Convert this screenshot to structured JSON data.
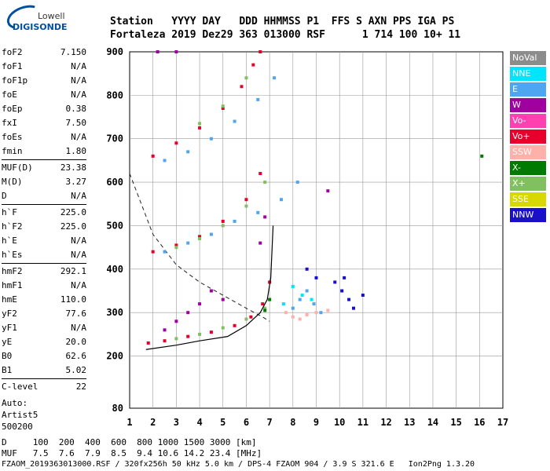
{
  "logo": {
    "line1": "Lowell",
    "line2": "DIGISONDE"
  },
  "header": {
    "row1": "Station   YYYY DAY   DDD HHMMSS P1  FFS S AXN PPS IGA PS",
    "row2": "Fortaleza 2019 Dez29 363 013000 RSF      1 714 100 10+ 11"
  },
  "params": [
    {
      "k": "foF2",
      "v": "7.150"
    },
    {
      "k": "foF1",
      "v": "N/A"
    },
    {
      "k": "foF1p",
      "v": "N/A"
    },
    {
      "k": "foE",
      "v": "N/A"
    },
    {
      "k": "foEp",
      "v": "0.38"
    },
    {
      "k": "fxI",
      "v": "7.50"
    },
    {
      "k": "foEs",
      "v": "N/A"
    },
    {
      "k": "fmin",
      "v": "1.80"
    },
    {
      "k": "MUF(D)",
      "v": "23.38"
    },
    {
      "k": "M(D)",
      "v": "3.27"
    },
    {
      "k": "D",
      "v": "N/A"
    },
    {
      "k": "h`F",
      "v": "225.0"
    },
    {
      "k": "h`F2",
      "v": "225.0"
    },
    {
      "k": "h`E",
      "v": "N/A"
    },
    {
      "k": "h`Es",
      "v": "N/A"
    },
    {
      "k": "hmF2",
      "v": "292.1"
    },
    {
      "k": "hmF1",
      "v": "N/A"
    },
    {
      "k": "hmE",
      "v": "110.0"
    },
    {
      "k": "yF2",
      "v": "77.6"
    },
    {
      "k": "yF1",
      "v": "N/A"
    },
    {
      "k": "yE",
      "v": "20.0"
    },
    {
      "k": "B0",
      "v": "62.6"
    },
    {
      "k": "B1",
      "v": "5.02"
    },
    {
      "k": "C-level",
      "v": "22"
    }
  ],
  "auto": {
    "l1": "Auto:",
    "l2": "Artist5",
    "l3": "500200"
  },
  "legend": [
    {
      "label": "NoVal",
      "color": "#8c8c8c"
    },
    {
      "label": "NNE",
      "color": "#00e5ff"
    },
    {
      "label": "E",
      "color": "#4fa6f0"
    },
    {
      "label": "W",
      "color": "#a000a0"
    },
    {
      "label": "Vo-",
      "color": "#ff40b0"
    },
    {
      "label": "Vo+",
      "color": "#e8002a"
    },
    {
      "label": "SSW",
      "color": "#ffb0a8"
    },
    {
      "label": "X-",
      "color": "#007a00"
    },
    {
      "label": "X+",
      "color": "#80c060"
    },
    {
      "label": "SSE",
      "color": "#d8d800"
    },
    {
      "label": "NNW",
      "color": "#1a10c8"
    }
  ],
  "footer": {
    "d_row": "D     100  200  400  600  800 1000 1500 3000 [km]",
    "muf_row": "MUF   7.5  7.6  7.9  8.5  9.4 10.6 14.2 23.4 [MHz]",
    "file_row": "FZAOM_2019363013000.RSF / 320fx256h 50 kHz 5.0 km / DPS-4 FZAOM 904 / 3.9 S 321.6 E   Ion2Png 1.3.20"
  },
  "chart_data": {
    "type": "scatter",
    "title": "",
    "xlabel": "",
    "ylabel": "",
    "xlim": [
      1,
      17
    ],
    "ylim": [
      80,
      900
    ],
    "x_ticks": [
      1,
      2,
      3,
      4,
      5,
      6,
      7,
      8,
      9,
      10,
      11,
      12,
      13,
      14,
      15,
      16,
      17
    ],
    "y_ticks": [
      200,
      300,
      400,
      500,
      600,
      700,
      800,
      900
    ],
    "series": [
      {
        "name": "Vo+",
        "color": "#e8002a",
        "points": [
          [
            1.8,
            230
          ],
          [
            2.5,
            235
          ],
          [
            3.5,
            245
          ],
          [
            4.5,
            255
          ],
          [
            5.5,
            270
          ],
          [
            6.2,
            290
          ],
          [
            6.7,
            320
          ],
          [
            7.0,
            370
          ],
          [
            2,
            440
          ],
          [
            3,
            455
          ],
          [
            4,
            475
          ],
          [
            5,
            510
          ],
          [
            6,
            560
          ],
          [
            6.6,
            620
          ],
          [
            2,
            660
          ],
          [
            3,
            690
          ],
          [
            4,
            725
          ],
          [
            5,
            770
          ],
          [
            5.8,
            820
          ],
          [
            6.3,
            870
          ],
          [
            6.6,
            900
          ]
        ]
      },
      {
        "name": "E",
        "color": "#4fa6f0",
        "points": [
          [
            2.5,
            440
          ],
          [
            3.5,
            460
          ],
          [
            4.5,
            480
          ],
          [
            5.5,
            510
          ],
          [
            6.5,
            530
          ],
          [
            7.5,
            560
          ],
          [
            8.2,
            600
          ],
          [
            2.5,
            650
          ],
          [
            3.5,
            670
          ],
          [
            4.5,
            700
          ],
          [
            5.5,
            740
          ],
          [
            6.5,
            790
          ],
          [
            7.2,
            840
          ],
          [
            8,
            310
          ],
          [
            8.3,
            330
          ],
          [
            8.6,
            350
          ],
          [
            8.9,
            320
          ],
          [
            9.2,
            300
          ]
        ]
      },
      {
        "name": "X+",
        "color": "#80c060",
        "points": [
          [
            3,
            240
          ],
          [
            4,
            250
          ],
          [
            5,
            265
          ],
          [
            6,
            285
          ],
          [
            6.8,
            310
          ],
          [
            3,
            450
          ],
          [
            4,
            470
          ],
          [
            5,
            500
          ],
          [
            6,
            545
          ],
          [
            6.8,
            600
          ],
          [
            4,
            735
          ],
          [
            5,
            775
          ],
          [
            6,
            840
          ]
        ]
      },
      {
        "name": "W",
        "color": "#a000a0",
        "points": [
          [
            2.5,
            260
          ],
          [
            3,
            280
          ],
          [
            3.5,
            300
          ],
          [
            4,
            320
          ],
          [
            4.5,
            350
          ],
          [
            5,
            330
          ],
          [
            2.2,
            900
          ],
          [
            3,
            900
          ],
          [
            9.5,
            580
          ],
          [
            6.6,
            460
          ],
          [
            6.8,
            520
          ]
        ]
      },
      {
        "name": "NNW",
        "color": "#1a10c8",
        "points": [
          [
            9.8,
            370
          ],
          [
            10.1,
            350
          ],
          [
            10.4,
            330
          ],
          [
            10.6,
            310
          ],
          [
            11,
            340
          ],
          [
            9,
            380
          ],
          [
            8.6,
            400
          ],
          [
            10.2,
            380
          ]
        ]
      },
      {
        "name": "SSW",
        "color": "#ffb0a8",
        "points": [
          [
            8,
            290
          ],
          [
            8.3,
            285
          ],
          [
            8.6,
            295
          ],
          [
            9,
            300
          ],
          [
            9.5,
            305
          ],
          [
            7.7,
            300
          ]
        ]
      },
      {
        "name": "NNE",
        "color": "#00e5ff",
        "points": [
          [
            8,
            360
          ],
          [
            8.4,
            340
          ],
          [
            8.8,
            330
          ],
          [
            7.6,
            320
          ]
        ]
      },
      {
        "name": "X-",
        "color": "#007a00",
        "points": [
          [
            6.8,
            305
          ],
          [
            7,
            330
          ],
          [
            16.1,
            660
          ]
        ]
      }
    ],
    "curves": {
      "profile": [
        [
          1.7,
          215
        ],
        [
          3,
          225
        ],
        [
          4,
          235
        ],
        [
          5.2,
          245
        ],
        [
          6,
          270
        ],
        [
          6.6,
          300
        ],
        [
          6.9,
          330
        ],
        [
          7.05,
          380
        ],
        [
          7.1,
          440
        ],
        [
          7.15,
          500
        ]
      ],
      "dashed": [
        [
          1,
          620
        ],
        [
          2,
          480
        ],
        [
          3,
          410
        ],
        [
          4,
          370
        ],
        [
          5,
          340
        ],
        [
          6,
          310
        ],
        [
          6.7,
          290
        ],
        [
          7,
          280
        ]
      ]
    }
  }
}
